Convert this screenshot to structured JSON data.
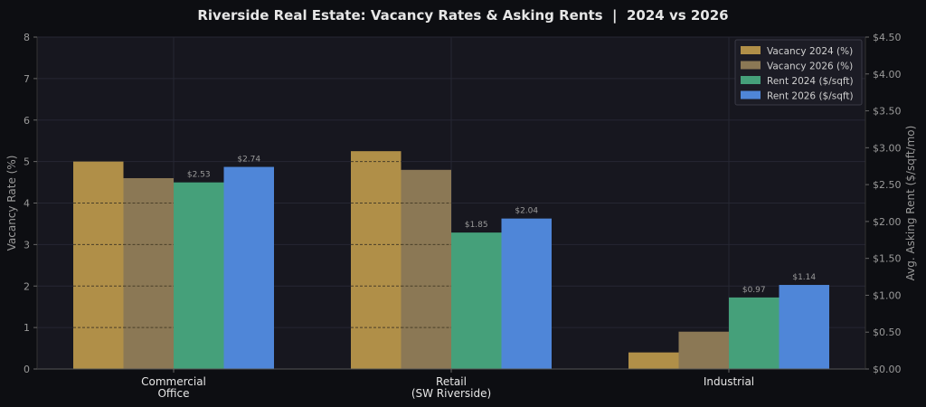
{
  "chart_data": {
    "type": "bar",
    "title": "Riverside Real Estate: Vacancy Rates & Asking Rents  |  2024 vs 2026",
    "categories": [
      [
        "Commercial",
        "Office"
      ],
      [
        "Retail",
        "(SW Riverside)"
      ],
      [
        "Industrial"
      ]
    ],
    "ylabel_left": "Vacancy Rate (%)",
    "ylabel_right": "Avg. Asking Rent ($/sqft/mo)",
    "ylim_left": [
      0,
      8
    ],
    "ylim_right": [
      0,
      4.5
    ],
    "yticks_left": [
      "0",
      "1",
      "2",
      "3",
      "4",
      "5",
      "6",
      "7",
      "8"
    ],
    "yticks_right": [
      "$0.00",
      "$0.50",
      "$1.00",
      "$1.50",
      "$2.00",
      "$2.50",
      "$3.00",
      "$3.50",
      "$4.00",
      "$4.50"
    ],
    "grid": true,
    "legend_position": "top-right",
    "series": [
      {
        "name": "Vacancy 2024 (%)",
        "axis": "left",
        "color": "#b08f48",
        "values": [
          5.0,
          5.25,
          0.4
        ],
        "labels": [
          "",
          "",
          ""
        ]
      },
      {
        "name": "Vacancy 2026 (%)",
        "axis": "left",
        "color": "#8b7855",
        "values": [
          4.6,
          4.8,
          0.9
        ],
        "labels": [
          "",
          "",
          ""
        ]
      },
      {
        "name": "Rent 2024 ($/sqft)",
        "axis": "right",
        "color": "#45a07a",
        "values": [
          2.53,
          1.85,
          0.97
        ],
        "labels": [
          "$2.53",
          "$1.85",
          "$0.97"
        ]
      },
      {
        "name": "Rent 2026 ($/sqft)",
        "axis": "right",
        "color": "#4f86d8",
        "values": [
          2.74,
          2.04,
          1.14
        ],
        "labels": [
          "$2.74",
          "$2.04",
          "$1.14"
        ]
      }
    ],
    "colors": {
      "background": "#0d0e12",
      "plot_background": "#17171f",
      "grid": "#262733",
      "text": "#e6e6e6",
      "tick_text": "#9a9a9a"
    }
  }
}
